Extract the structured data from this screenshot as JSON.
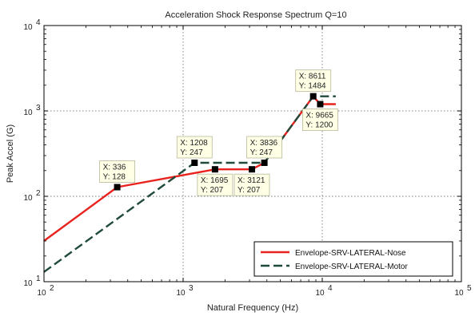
{
  "chart_data": {
    "type": "line",
    "title": "Acceleration Shock Response Spectrum Q=10",
    "xlabel": "Natural Frequency (Hz)",
    "ylabel": "Peak Accel (G)",
    "x_scale": "log",
    "y_scale": "log",
    "xlim": [
      100,
      100000
    ],
    "ylim": [
      10,
      10000
    ],
    "x_ticks": [
      {
        "value": 100,
        "base": "10",
        "exp": "2"
      },
      {
        "value": 1000,
        "base": "10",
        "exp": "3"
      },
      {
        "value": 10000,
        "base": "10",
        "exp": "4"
      },
      {
        "value": 100000,
        "base": "10",
        "exp": "5"
      }
    ],
    "y_ticks": [
      {
        "value": 10,
        "base": "10",
        "exp": "1"
      },
      {
        "value": 100,
        "base": "10",
        "exp": "2"
      },
      {
        "value": 1000,
        "base": "10",
        "exp": "3"
      },
      {
        "value": 10000,
        "base": "10",
        "exp": "4"
      }
    ],
    "grid": true,
    "legend_position": "bottom-right",
    "series": [
      {
        "name": "Envelope-SRV-LATERAL-Nose",
        "color": "#e8231e",
        "style": "solid",
        "x": [
          100,
          336,
          1695,
          3121,
          3836,
          8611,
          9665,
          12500
        ],
        "y": [
          30,
          128,
          207,
          207,
          247,
          1484,
          1200,
          1200
        ]
      },
      {
        "name": "Envelope-SRV-LATERAL-Motor",
        "color": "#1f4a3a",
        "style": "dashed",
        "x": [
          100,
          1208,
          3836,
          8611,
          12500
        ],
        "y": [
          13,
          247,
          247,
          1484,
          1484
        ]
      }
    ],
    "annotations": [
      {
        "x": 336,
        "y": 128,
        "xt": "X: 336",
        "yt": "Y: 128",
        "side": "above"
      },
      {
        "x": 1208,
        "y": 247,
        "xt": "X: 1208",
        "yt": "Y: 247",
        "side": "above"
      },
      {
        "x": 1695,
        "y": 207,
        "xt": "X: 1695",
        "yt": "Y: 207",
        "side": "below"
      },
      {
        "x": 3121,
        "y": 207,
        "xt": "X: 3121",
        "yt": "Y: 207",
        "side": "below"
      },
      {
        "x": 3836,
        "y": 247,
        "xt": "X: 3836",
        "yt": "Y: 247",
        "side": "above"
      },
      {
        "x": 8611,
        "y": 1484,
        "xt": "X: 8611",
        "yt": "Y: 1484",
        "side": "above"
      },
      {
        "x": 9665,
        "y": 1200,
        "xt": "X: 9665",
        "yt": "Y: 1200",
        "side": "below"
      }
    ]
  }
}
